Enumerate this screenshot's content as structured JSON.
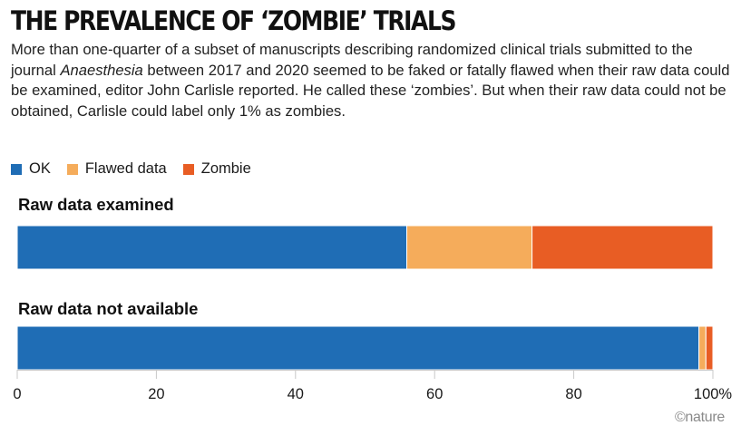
{
  "title": "THE PREVALENCE OF ‘ZOMBIE’ TRIALS",
  "subtitle": {
    "before_journal": "More than one-quarter of a subset of manuscripts describing randomized clinical trials submitted to the journal ",
    "journal": "Anaesthesia",
    "after_journal": " between 2017 and 2020 seemed to be faked or fatally flawed when their raw data could be examined, editor John Carlisle reported. He called these ‘zombies’. But when their raw data could not be obtained, Carlisle could label only 1% as zombies."
  },
  "credit": "©nature",
  "colors": {
    "ok": "#1f6db5",
    "flawed": "#f5ac5b",
    "zombie": "#e85d24"
  },
  "chart_data": {
    "type": "bar",
    "orientation": "horizontal",
    "stacked": true,
    "categories": [
      "Raw data examined",
      "Raw data not available"
    ],
    "series": [
      {
        "name": "OK",
        "values": [
          56,
          98
        ]
      },
      {
        "name": "Flawed data",
        "values": [
          18,
          1
        ]
      },
      {
        "name": "Zombie",
        "values": [
          26,
          1
        ]
      }
    ],
    "xlim": [
      0,
      100
    ],
    "xticks": [
      "0",
      "20",
      "40",
      "60",
      "80",
      "100%"
    ],
    "xlabel": "",
    "ylabel": "",
    "legend_position": "top-left"
  }
}
